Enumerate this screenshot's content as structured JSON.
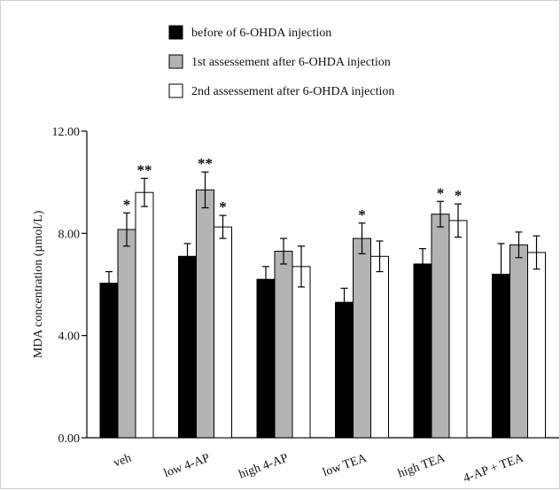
{
  "chart_data": {
    "type": "bar",
    "title": "",
    "xlabel": "",
    "ylabel": "MDA concentration (µmol/L)",
    "ylim": [
      0,
      12
    ],
    "yticks": [
      "0.00",
      "4.00",
      "8.00",
      "12.00"
    ],
    "grid": false,
    "legend_position": "top",
    "categories": [
      "veh",
      "low  4-AP",
      "high  4-AP",
      "low  TEA",
      "high  TEA",
      "4-AP + TEA"
    ],
    "series": [
      {
        "name": "before of 6-OHDA injection",
        "color": "#000000",
        "values": [
          6.05,
          7.1,
          6.2,
          5.3,
          6.8,
          6.4
        ],
        "errors": [
          0.45,
          0.5,
          0.5,
          0.55,
          0.6,
          1.2
        ],
        "significance": [
          "",
          "",
          "",
          "",
          "",
          ""
        ]
      },
      {
        "name": "1st assessement after 6-OHDA injection",
        "color": "#b3b3b3",
        "values": [
          8.15,
          9.7,
          7.3,
          7.8,
          8.75,
          7.55
        ],
        "errors": [
          0.65,
          0.7,
          0.5,
          0.6,
          0.5,
          0.5
        ],
        "significance": [
          "*",
          "**",
          "",
          "*",
          "*",
          ""
        ]
      },
      {
        "name": "2nd assessement after 6-OHDA injection",
        "color": "#ffffff",
        "values": [
          9.6,
          8.25,
          6.7,
          7.1,
          8.5,
          7.25
        ],
        "errors": [
          0.55,
          0.45,
          0.8,
          0.6,
          0.65,
          0.65
        ],
        "significance": [
          "**",
          "*",
          "",
          "",
          "*",
          ""
        ]
      }
    ]
  }
}
